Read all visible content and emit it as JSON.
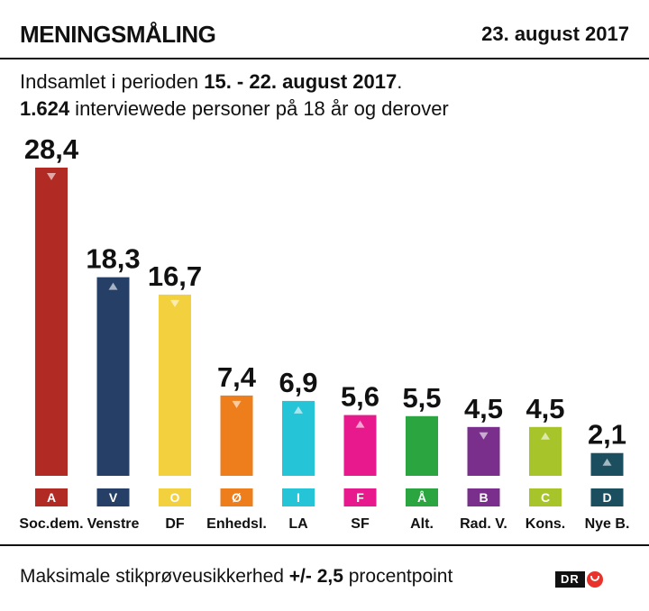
{
  "header": {
    "title": "MENINGSMÅLING",
    "date": "23. august 2017"
  },
  "subtitle": {
    "line1_prefix": "Indsamlet i perioden ",
    "line1_bold": "15. - 22. august 2017",
    "line1_suffix": ".",
    "line2_bold": "1.624",
    "line2_rest": " interviewede personer på 18 år og derover"
  },
  "footer": {
    "prefix": "Maksimale stikprøveusikkerhed ",
    "bold": "+/- 2,5",
    "suffix": " procentpoint"
  },
  "logo": {
    "text": "DR"
  },
  "chart_data": {
    "type": "bar",
    "categories": [
      "Soc.dem.",
      "Venstre",
      "DF",
      "Enhedsl.",
      "LA",
      "SF",
      "Alt.",
      "Rad. V.",
      "Kons.",
      "Nye B."
    ],
    "letters": [
      "A",
      "V",
      "O",
      "Ø",
      "I",
      "F",
      "Å",
      "B",
      "C",
      "D"
    ],
    "values": [
      28.4,
      18.3,
      16.7,
      7.4,
      6.9,
      5.6,
      5.5,
      4.5,
      4.5,
      2.1
    ],
    "value_labels": [
      "28,4",
      "18,3",
      "16,7",
      "7,4",
      "6,9",
      "5,6",
      "5,5",
      "4,5",
      "4,5",
      "2,1"
    ],
    "trend": [
      "down",
      "up",
      "down",
      "down",
      "up",
      "up",
      "none",
      "down",
      "up",
      "up"
    ],
    "colors": [
      "#b22a24",
      "#263f66",
      "#f3d03e",
      "#ee7d1b",
      "#25c4d6",
      "#e8198c",
      "#2ba540",
      "#7a2f8c",
      "#a8c42b",
      "#1b4e5f"
    ],
    "ylim": [
      0,
      28.4
    ]
  }
}
